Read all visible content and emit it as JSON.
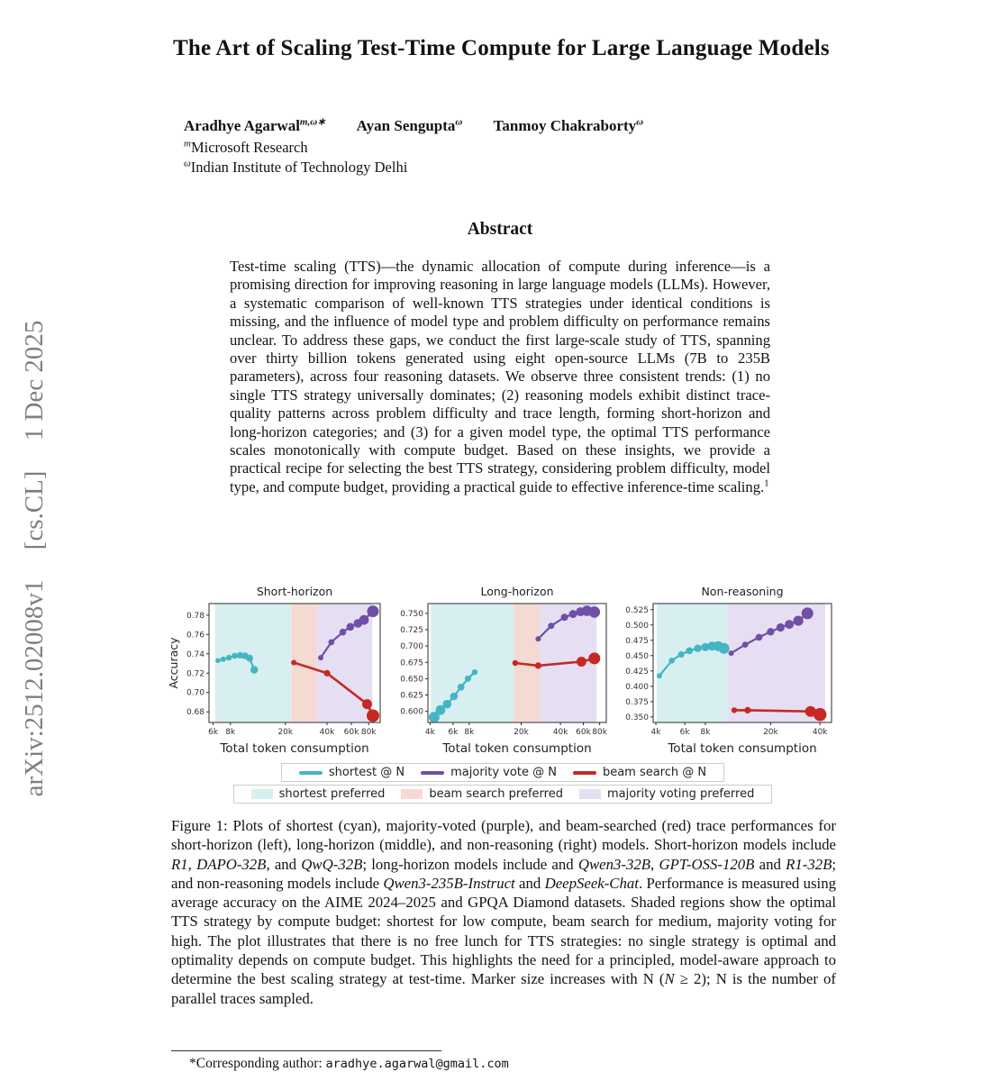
{
  "watermark": {
    "id": "arXiv:2512.02008v1",
    "category": "[cs.CL]",
    "date": "1 Dec 2025"
  },
  "title": "The Art of Scaling Test-Time Compute for Large Language Models",
  "authors": [
    {
      "name": "Aradhye Agarwal",
      "sup": "m,ω∗"
    },
    {
      "name": "Ayan Sengupta",
      "sup": "ω"
    },
    {
      "name": "Tanmoy Chakraborty",
      "sup": "ω"
    }
  ],
  "affiliations": [
    {
      "sup": "m",
      "name": "Microsoft Research"
    },
    {
      "sup": "ω",
      "name": "Indian Institute of Technology Delhi"
    }
  ],
  "abstract": {
    "heading": "Abstract",
    "runs": [
      {
        "t": "Test-time scaling (TTS)—the dynamic allocation of compute during inference—is a promising direction for improving reasoning in large language models (LLMs).  However, a systematic comparison of well-known TTS strategies under identical conditions is missing, and the influence of model type and problem difficulty on performance remains unclear.  To address these gaps, we conduct the first large-scale study of TTS, spanning over thirty billion tokens generated using eight open-source LLMs (7B to 235B parameters), across four reasoning datasets.  We observe three consistent trends: (1) no single TTS strategy universally dominates; (2) reasoning models exhibit distinct trace-quality patterns across problem difficulty and trace length, forming short-horizon and long-horizon categories; and (3) for a given model type, the optimal TTS performance scales monotonically with compute budget. Based on these insights, we provide a practical recipe for selecting the best TTS strategy, considering problem difficulty, model type, and compute budget, providing a practical guide to effective inference-time scaling."
      },
      {
        "t": "1",
        "s": "sup"
      }
    ]
  },
  "chart_data": [
    {
      "type": "scatter",
      "title": "Short-horizon",
      "xlabel": "Total token consumption",
      "ylabel": "Accuracy",
      "xscale": "log",
      "xlim": [
        5600,
        97000
      ],
      "ylim": [
        0.669,
        0.792
      ],
      "yticks": {
        "values": [
          0.68,
          0.7,
          0.72,
          0.74,
          0.76,
          0.78
        ],
        "labels": [
          "0.68",
          "0.70",
          "0.72",
          "0.74",
          "0.76",
          "0.78"
        ]
      },
      "xticks": {
        "values": [
          6000,
          8000,
          20000,
          40000,
          60000,
          80000
        ],
        "labels": [
          "6k",
          "8k",
          "20k",
          "40k",
          "60k",
          "80k"
        ]
      },
      "regions": [
        {
          "label": "shortest preferred",
          "from": 6200,
          "to": 22000,
          "color": "#d8eff1"
        },
        {
          "label": "beam search preferred",
          "from": 22000,
          "to": 34000,
          "color": "#f4dad3"
        },
        {
          "label": "majority voting preferred",
          "from": 34000,
          "to": 85000,
          "color": "#e6dff3"
        }
      ],
      "series": [
        {
          "name": "shortest @ N",
          "color": "#45b5c4",
          "line_width": 2.2,
          "points": [
            [
              6500,
              0.733,
              2.8
            ],
            [
              7100,
              0.7345,
              3.0
            ],
            [
              7800,
              0.736,
              3.2
            ],
            [
              8600,
              0.738,
              3.4
            ],
            [
              9400,
              0.7385,
              3.6
            ],
            [
              10200,
              0.738,
              3.8
            ],
            [
              11000,
              0.7355,
              4.0
            ],
            [
              11900,
              0.7235,
              4.2
            ]
          ]
        },
        {
          "name": "majority vote @ N",
          "color": "#6f4fa8",
          "line_width": 2.2,
          "points": [
            [
              36000,
              0.736,
              3.0
            ],
            [
              43000,
              0.752,
              3.4
            ],
            [
              52000,
              0.7625,
              3.8
            ],
            [
              59000,
              0.768,
              4.3
            ],
            [
              67000,
              0.7715,
              4.8
            ],
            [
              74000,
              0.775,
              5.4
            ],
            [
              86000,
              0.784,
              6.5
            ]
          ]
        },
        {
          "name": "beam search @ N",
          "color": "#c32a24",
          "line_width": 2.6,
          "points": [
            [
              23000,
              0.731,
              3.0
            ],
            [
              40000,
              0.72,
              3.6
            ],
            [
              78000,
              0.688,
              5.5
            ],
            [
              86000,
              0.676,
              7.0
            ]
          ]
        }
      ]
    },
    {
      "type": "scatter",
      "title": "Long-horizon",
      "xlabel": "Total token consumption",
      "ylabel": "",
      "xscale": "log",
      "xlim": [
        3850,
        90000
      ],
      "ylim": [
        0.583,
        0.765
      ],
      "yticks": {
        "values": [
          0.6,
          0.625,
          0.65,
          0.675,
          0.7,
          0.725,
          0.75
        ],
        "labels": [
          "0.600",
          "0.625",
          "0.650",
          "0.675",
          "0.700",
          "0.725",
          "0.750"
        ]
      },
      "xticks": {
        "values": [
          4000,
          6000,
          8000,
          20000,
          40000,
          60000,
          80000
        ],
        "labels": [
          "4k",
          "6k",
          "8k",
          "20k",
          "40k",
          "60k",
          "80k"
        ]
      },
      "regions": [
        {
          "label": "shortest preferred",
          "from": 4050,
          "to": 17500,
          "color": "#d8eff1"
        },
        {
          "label": "beam search preferred",
          "from": 17500,
          "to": 28000,
          "color": "#f4dad3"
        },
        {
          "label": "majority voting preferred",
          "from": 28000,
          "to": 76000,
          "color": "#e6dff3"
        }
      ],
      "series": [
        {
          "name": "shortest @ N",
          "color": "#45b5c4",
          "line_width": 2.2,
          "points": [
            [
              4300,
              0.591,
              6.0
            ],
            [
              4800,
              0.602,
              5.4
            ],
            [
              5400,
              0.611,
              4.8
            ],
            [
              6100,
              0.623,
              4.3
            ],
            [
              6900,
              0.637,
              3.9
            ],
            [
              7800,
              0.65,
              3.5
            ],
            [
              8800,
              0.66,
              3.2
            ]
          ]
        },
        {
          "name": "majority vote @ N",
          "color": "#6f4fa8",
          "line_width": 2.2,
          "points": [
            [
              27000,
              0.711,
              3.0
            ],
            [
              34000,
              0.731,
              3.5
            ],
            [
              43000,
              0.744,
              4.0
            ],
            [
              50000,
              0.749,
              4.5
            ],
            [
              57000,
              0.7525,
              5.0
            ],
            [
              64000,
              0.754,
              5.8
            ],
            [
              73000,
              0.752,
              6.3
            ]
          ]
        },
        {
          "name": "beam search @ N",
          "color": "#c32a24",
          "line_width": 2.6,
          "points": [
            [
              18000,
              0.674,
              3.2
            ],
            [
              27000,
              0.67,
              3.6
            ],
            [
              58000,
              0.676,
              5.5
            ],
            [
              73000,
              0.681,
              6.5
            ]
          ]
        }
      ]
    },
    {
      "type": "scatter",
      "title": "Non-reasoning",
      "xlabel": "Total token consumption",
      "ylabel": "",
      "xscale": "log",
      "xlim": [
        3850,
        47000
      ],
      "ylim": [
        0.341,
        0.535
      ],
      "yticks": {
        "values": [
          0.35,
          0.375,
          0.4,
          0.425,
          0.45,
          0.475,
          0.5,
          0.525
        ],
        "labels": [
          "0.350",
          "0.375",
          "0.400",
          "0.425",
          "0.450",
          "0.475",
          "0.500",
          "0.525"
        ]
      },
      "xticks": {
        "values": [
          4000,
          6000,
          8000,
          20000,
          40000
        ],
        "labels": [
          "4k",
          "6k",
          "8k",
          "20k",
          "40k"
        ]
      },
      "regions": [
        {
          "label": "shortest preferred",
          "from": 4050,
          "to": 11000,
          "color": "#d8eff1"
        },
        {
          "label": "majority voting preferred",
          "from": 11000,
          "to": 43000,
          "color": "#e6dff3"
        }
      ],
      "series": [
        {
          "name": "shortest @ N",
          "color": "#45b5c4",
          "line_width": 2.2,
          "points": [
            [
              4200,
              0.417,
              3.0
            ],
            [
              5000,
              0.442,
              3.3
            ],
            [
              5700,
              0.452,
              3.6
            ],
            [
              6400,
              0.458,
              3.9
            ],
            [
              7200,
              0.462,
              4.2
            ],
            [
              8000,
              0.464,
              4.6
            ],
            [
              8800,
              0.4655,
              5.0
            ],
            [
              9600,
              0.4655,
              5.5
            ],
            [
              10400,
              0.462,
              6.0
            ]
          ]
        },
        {
          "name": "majority vote @ N",
          "color": "#6f4fa8",
          "line_width": 2.2,
          "points": [
            [
              11500,
              0.454,
              3.0
            ],
            [
              14000,
              0.468,
              3.4
            ],
            [
              17000,
              0.48,
              3.8
            ],
            [
              20000,
              0.489,
              4.2
            ],
            [
              23000,
              0.496,
              4.6
            ],
            [
              26000,
              0.501,
              5.0
            ],
            [
              29500,
              0.507,
              5.6
            ],
            [
              33500,
              0.519,
              6.5
            ]
          ]
        },
        {
          "name": "beam search @ N",
          "color": "#c32a24",
          "line_width": 2.6,
          "points": [
            [
              12000,
              0.361,
              3.2
            ],
            [
              14500,
              0.361,
              3.6
            ],
            [
              35000,
              0.359,
              6.0
            ],
            [
              40000,
              0.354,
              7.2
            ]
          ]
        }
      ]
    }
  ],
  "legend": {
    "lines": [
      {
        "label": "shortest @ N",
        "color": "#45b5c4"
      },
      {
        "label": "majority vote @ N",
        "color": "#6f4fa8"
      },
      {
        "label": "beam search @ N",
        "color": "#c32a24"
      }
    ],
    "patches": [
      {
        "label": "shortest preferred",
        "color": "#d8eff1"
      },
      {
        "label": "beam search preferred",
        "color": "#f4dad3"
      },
      {
        "label": "majority voting preferred",
        "color": "#e6dff3"
      }
    ]
  },
  "caption": {
    "runs": [
      {
        "t": "Figure 1: Plots of shortest (cyan), majority-voted (purple), and beam-searched (red) trace performances for short-horizon (left), long-horizon (middle), and non-reasoning (right) models. Short-horizon models include "
      },
      {
        "t": "R1",
        "s": "i"
      },
      {
        "t": ", "
      },
      {
        "t": "DAPO-32B",
        "s": "i"
      },
      {
        "t": ", and "
      },
      {
        "t": "QwQ-32B",
        "s": "i"
      },
      {
        "t": "; long-horizon models include and "
      },
      {
        "t": "Qwen3-32B",
        "s": "i"
      },
      {
        "t": ", "
      },
      {
        "t": "GPT-OSS-120B",
        "s": "i"
      },
      {
        "t": " and "
      },
      {
        "t": "R1-32B",
        "s": "i"
      },
      {
        "t": "; and non-reasoning models include "
      },
      {
        "t": "Qwen3-235B-Instruct",
        "s": "i"
      },
      {
        "t": " and "
      },
      {
        "t": "DeepSeek-Chat",
        "s": "i"
      },
      {
        "t": ". Performance is measured using average accuracy on the AIME 2024–2025 and GPQA Diamond datasets. Shaded regions show the optimal TTS strategy by compute budget: shortest for low compute, beam search for medium, majority voting for high. The plot illustrates that there is no free lunch for TTS strategies: no single strategy is optimal and optimality depends on compute budget. This highlights the need for a principled, model-aware approach to determine the best scaling strategy at test-time. Marker size increases with N ("
      },
      {
        "t": "N",
        "s": "i"
      },
      {
        "t": " ≥ 2); N is the number of parallel traces sampled."
      }
    ]
  },
  "footnote": {
    "runs": [
      {
        "t": "*Corresponding author: "
      },
      {
        "t": "aradhye.agarwal@gmail.com",
        "s": "mono"
      }
    ]
  }
}
